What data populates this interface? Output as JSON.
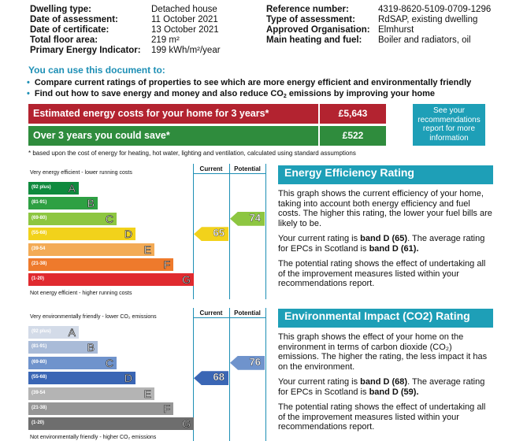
{
  "details": {
    "dwelling_type_label": "Dwelling type:",
    "dwelling_type": "Detached house",
    "date_assessment_label": "Date of assessment:",
    "date_assessment": "11 October 2021",
    "date_certificate_label": "Date of certificate:",
    "date_certificate": "13 October 2021",
    "floor_area_label": "Total floor area:",
    "floor_area": "219 m²",
    "pei_label": "Primary Energy Indicator:",
    "pei": "199 kWh/m²/year",
    "ref_label": "Reference number:",
    "ref": "4319-8620-5109-0709-1296",
    "assess_type_label": "Type of assessment:",
    "assess_type": "RdSAP, existing dwelling",
    "org_label": "Approved Organisation:",
    "org": "Elmhurst",
    "heating_label": "Main heating and fuel:",
    "heating": "Boiler and radiators, oil"
  },
  "use": {
    "title": "You can use this document to:",
    "bullet1": "Compare current ratings of properties to see which are more energy efficient and environmentally friendly",
    "bullet2_a": "Find out how to save energy and money and also reduce CO",
    "bullet2_sub": "2",
    "bullet2_b": " emissions by improving your home"
  },
  "costs": {
    "row1_label": "Estimated energy costs for your home for 3 years*",
    "row1_value": "£5,643",
    "row2_label": "Over 3 years you could save*",
    "row2_value": "£522",
    "see_box": "See your recommendations report for more information",
    "footnote": "* based upon the cost of energy for heating, hot water, lighting and ventilation, calculated using standard assumptions"
  },
  "colors": {
    "A": "#0f8a3e",
    "B": "#2ea043",
    "C": "#8dc641",
    "D": "#f2d21b",
    "E": "#f3ab56",
    "F": "#ee7a2c",
    "G": "#e02a2f",
    "grey_A": "#d3dbe8",
    "grey_B": "#a9bbd8",
    "grey_C": "#6f93cc",
    "grey_D": "#3a66b5",
    "grey_E": "#b4b4b4",
    "grey_F": "#969696",
    "grey_G": "#6e6e6e"
  },
  "ee_chart": {
    "top_text": "Very energy efficient - lower running costs",
    "bottom_text": "Not energy efficient - higher running costs",
    "current_label": "Current",
    "potential_label": "Potential",
    "bands": [
      {
        "range": "(92 plus)",
        "letter": "A"
      },
      {
        "range": "(81-91)",
        "letter": "B"
      },
      {
        "range": "(69-80)",
        "letter": "C"
      },
      {
        "range": "(55-68)",
        "letter": "D"
      },
      {
        "range": "(39-54",
        "letter": "E"
      },
      {
        "range": "(21-38)",
        "letter": "F"
      },
      {
        "range": "(1-20)",
        "letter": "G"
      }
    ],
    "current": 65,
    "potential": 74
  },
  "ei_chart": {
    "top_text": "Very environmentally friendly - lower CO₂ emissions",
    "bottom_text": "Not environmentally friendly - higher CO₂ emissions",
    "current_label": "Current",
    "potential_label": "Potential",
    "bands": [
      {
        "range": "(92 plus)",
        "letter": "A"
      },
      {
        "range": "(81-91)",
        "letter": "B"
      },
      {
        "range": "(69-80)",
        "letter": "C"
      },
      {
        "range": "(55-68)",
        "letter": "D"
      },
      {
        "range": "(39-54",
        "letter": "E"
      },
      {
        "range": "(21-38)",
        "letter": "F"
      },
      {
        "range": "(1-20)",
        "letter": "G"
      }
    ],
    "current": 68,
    "potential": 76
  },
  "eer_info": {
    "title": "Energy Efficiency Rating",
    "p1": "This graph shows the current efficiency of your home, taking into account both energy efficiency and fuel costs. The higher this rating, the lower your fuel bills are likely to be.",
    "p2_a": "Your current rating is ",
    "p2_b": "band D (65)",
    "p2_c": ". The average rating for EPCs in Scotland is ",
    "p2_d": "band D (61).",
    "p3": "The potential rating shows the effect of undertaking all of the improvement measures listed within your recommendations report."
  },
  "eir_info": {
    "title": "Environmental Impact (CO2) Rating",
    "p1": "This graph shows the effect of your home on the environment in terms of carbon dioxide (CO₂) emissions. The higher the rating, the less impact it has on the environment.",
    "p2_a": "Your current rating is ",
    "p2_b": "band D (68)",
    "p2_c": ". The average rating for EPCs in Scotland is ",
    "p2_d": "band D (59).",
    "p3": "The potential rating shows the effect of undertaking all of the improvement measures listed within your recommendations report."
  }
}
